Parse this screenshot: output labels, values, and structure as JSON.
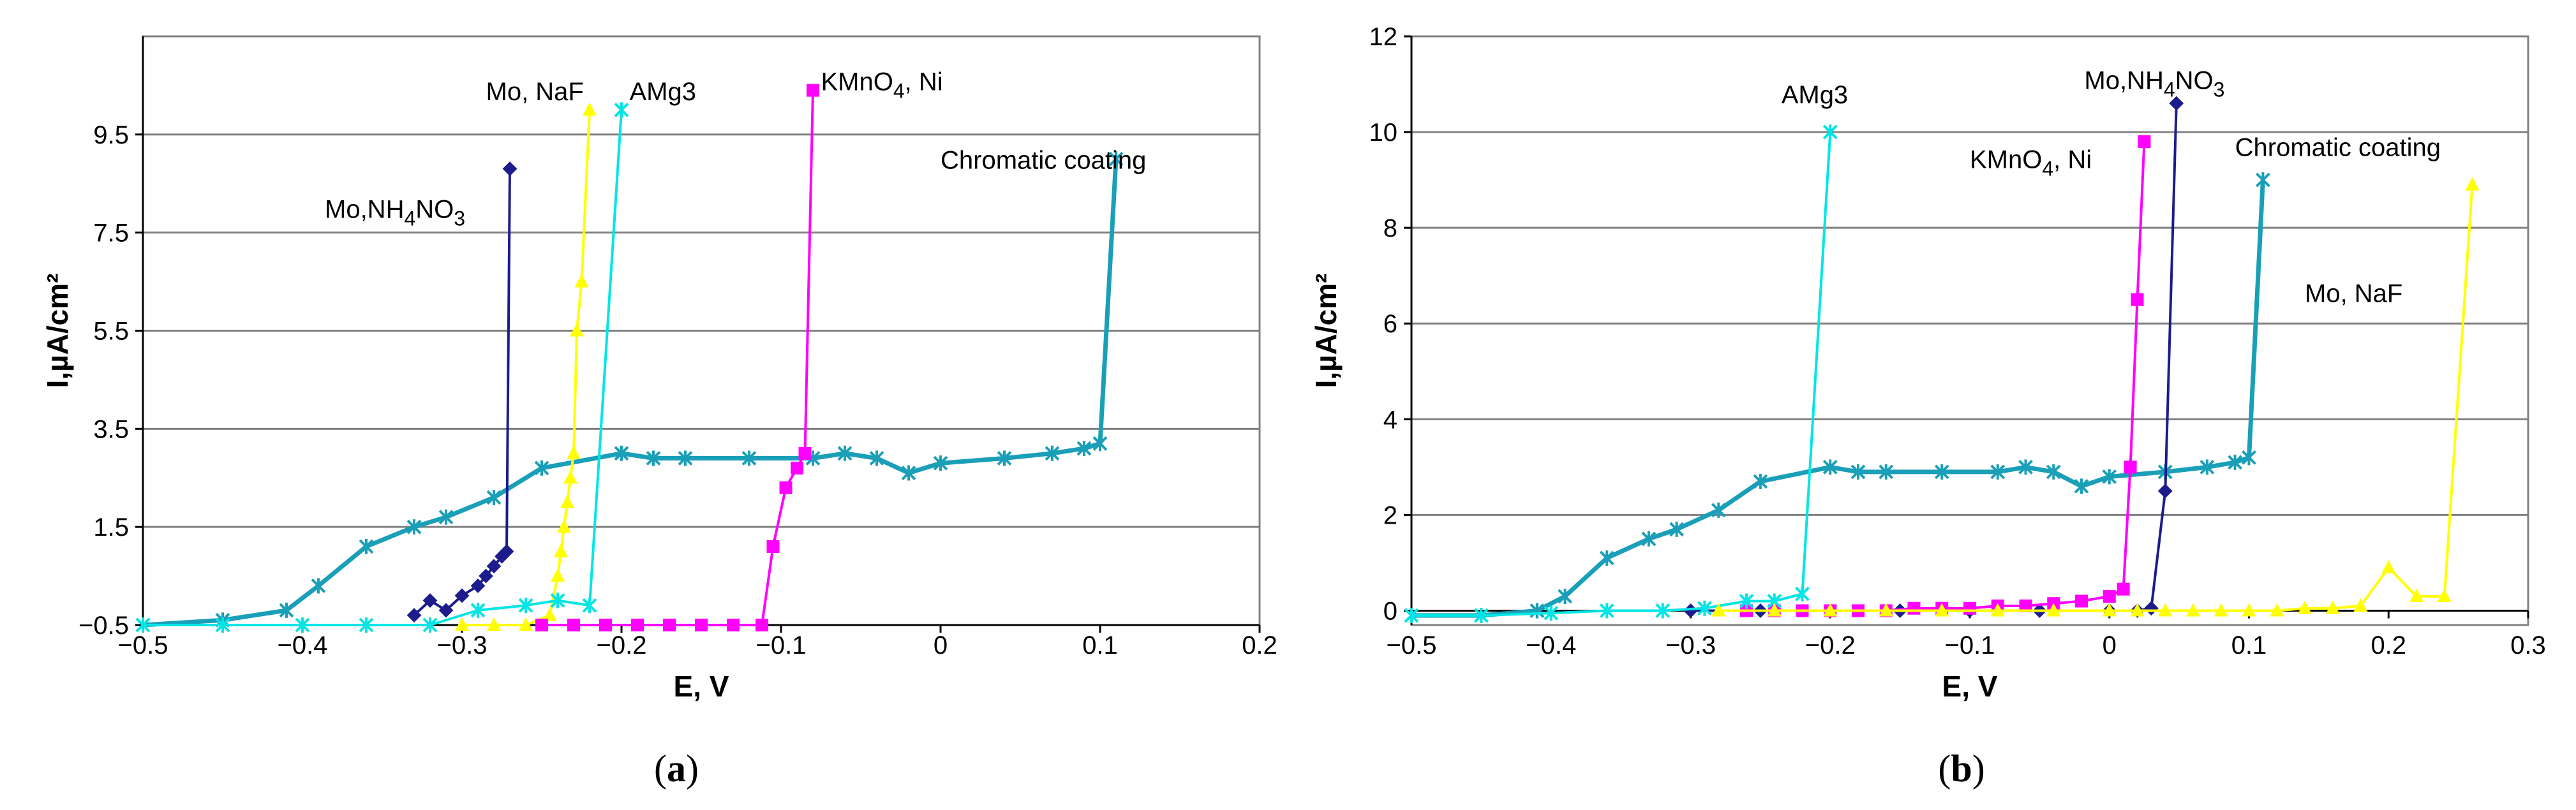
{
  "chart_data": [
    {
      "id": "a",
      "panel_label": "a",
      "type": "line",
      "xlabel": "E, V",
      "ylabel": "I,µA/cm²",
      "xlim": [
        -0.5,
        0.2
      ],
      "ylim": [
        -0.5,
        11.5
      ],
      "xticks": [
        -0.5,
        -0.4,
        -0.3,
        -0.2,
        -0.1,
        0,
        0.1,
        0.2
      ],
      "xtick_labels": [
        "−0.5",
        "−0.4",
        "−0.3",
        "−0.2",
        "−0.1",
        "0",
        "0.1",
        "0.2"
      ],
      "yticks": [
        -0.5,
        1.5,
        3.5,
        5.5,
        7.5,
        9.5
      ],
      "ytick_labels": [
        "−0.5",
        "1.5",
        "3.5",
        "5.5",
        "7.5",
        "9.5"
      ],
      "gridlines_y": [
        -0.5,
        1.5,
        3.5,
        5.5,
        7.5,
        9.5,
        11.5
      ],
      "series": [
        {
          "name": "Chromatic coating",
          "color": "#1a9fb8",
          "marker": "star",
          "label_parts": [
            {
              "t": "Chromatic coating",
              "sub": false
            }
          ],
          "label_at": [
            0.0,
            8.8
          ],
          "x": [
            -0.5,
            -0.45,
            -0.41,
            -0.39,
            -0.36,
            -0.33,
            -0.31,
            -0.28,
            -0.25,
            -0.2,
            -0.18,
            -0.16,
            -0.12,
            -0.08,
            -0.06,
            -0.04,
            -0.02,
            0.0,
            0.04,
            0.07,
            0.09,
            0.1,
            0.11
          ],
          "y": [
            -0.5,
            -0.4,
            -0.2,
            0.3,
            1.1,
            1.5,
            1.7,
            2.1,
            2.7,
            3.0,
            2.9,
            2.9,
            2.9,
            2.9,
            3.0,
            2.9,
            2.6,
            2.8,
            2.9,
            3.0,
            3.1,
            3.2,
            9.0
          ]
        },
        {
          "name": "Mo,NH₄NO₃",
          "color": "#1c1c8c",
          "marker": "diamond",
          "label_parts": [
            {
              "t": "Mo,NH",
              "sub": false
            },
            {
              "t": "4",
              "sub": true
            },
            {
              "t": "NO",
              "sub": false
            },
            {
              "t": "3",
              "sub": true
            }
          ],
          "label_at": [
            -0.386,
            7.8
          ],
          "x": [
            -0.33,
            -0.32,
            -0.31,
            -0.3,
            -0.29,
            -0.285,
            -0.28,
            -0.275,
            -0.272,
            -0.27
          ],
          "y": [
            -0.3,
            0.0,
            -0.2,
            0.1,
            0.3,
            0.5,
            0.7,
            0.9,
            1.0,
            8.8
          ]
        },
        {
          "name": "Mo, NaF",
          "color": "#ffff00",
          "marker": "triangle",
          "label_parts": [
            {
              "t": "Mo, NaF",
              "sub": false
            }
          ],
          "label_at": [
            -0.285,
            10.2
          ],
          "x": [
            -0.3,
            -0.28,
            -0.26,
            -0.245,
            -0.24,
            -0.238,
            -0.236,
            -0.234,
            -0.232,
            -0.23,
            -0.228,
            -0.225,
            -0.22
          ],
          "y": [
            -0.5,
            -0.5,
            -0.5,
            -0.3,
            0.5,
            1.0,
            1.5,
            2.0,
            2.5,
            3.0,
            5.5,
            6.5,
            10.0
          ]
        },
        {
          "name": "AMg3",
          "color": "#00e5e5",
          "marker": "star",
          "label_parts": [
            {
              "t": "AMg3",
              "sub": false
            }
          ],
          "label_at": [
            -0.195,
            10.2
          ],
          "x": [
            -0.5,
            -0.45,
            -0.4,
            -0.36,
            -0.32,
            -0.29,
            -0.26,
            -0.24,
            -0.22,
            -0.2
          ],
          "y": [
            -0.5,
            -0.5,
            -0.5,
            -0.5,
            -0.5,
            -0.2,
            -0.1,
            0.0,
            -0.1,
            10.0
          ]
        },
        {
          "name": "KMnO₄, Ni",
          "color": "#ff00ff",
          "marker": "square",
          "label_parts": [
            {
              "t": "KMnO",
              "sub": false
            },
            {
              "t": "4",
              "sub": true
            },
            {
              "t": ", Ni",
              "sub": false
            }
          ],
          "label_at": [
            -0.075,
            10.4
          ],
          "x": [
            -0.25,
            -0.23,
            -0.21,
            -0.19,
            -0.17,
            -0.15,
            -0.13,
            -0.112,
            -0.105,
            -0.097,
            -0.09,
            -0.085,
            -0.08
          ],
          "y": [
            -0.5,
            -0.5,
            -0.5,
            -0.5,
            -0.5,
            -0.5,
            -0.5,
            -0.5,
            1.1,
            2.3,
            2.7,
            3.0,
            10.4
          ]
        }
      ]
    },
    {
      "id": "b",
      "panel_label": "b",
      "type": "line",
      "xlabel": "E, V",
      "ylabel": "I,µA/cm²",
      "xlim": [
        -0.5,
        0.3
      ],
      "ylim": [
        -0.3,
        12
      ],
      "xticks": [
        -0.5,
        -0.4,
        -0.3,
        -0.2,
        -0.1,
        0,
        0.1,
        0.2,
        0.3
      ],
      "xtick_labels": [
        "−0.5",
        "−0.4",
        "−0.3",
        "−0.2",
        "−0.1",
        "0",
        "0.1",
        "0.2",
        "0.3"
      ],
      "yticks": [
        0,
        2,
        4,
        6,
        8,
        10,
        12
      ],
      "ytick_labels": [
        "0",
        "2",
        "4",
        "6",
        "8",
        "10",
        "12"
      ],
      "gridlines_y": [
        2,
        4,
        6,
        8,
        10,
        12
      ],
      "series": [
        {
          "name": "Chromatic coating",
          "color": "#1a9fb8",
          "marker": "star",
          "label_parts": [
            {
              "t": "Chromatic coating",
              "sub": false
            }
          ],
          "label_at": [
            0.09,
            9.5
          ],
          "x": [
            -0.5,
            -0.45,
            -0.41,
            -0.39,
            -0.36,
            -0.33,
            -0.31,
            -0.28,
            -0.25,
            -0.2,
            -0.18,
            -0.16,
            -0.12,
            -0.08,
            -0.06,
            -0.04,
            -0.02,
            0.0,
            0.04,
            0.07,
            0.09,
            0.1,
            0.11
          ],
          "y": [
            -0.1,
            -0.1,
            0.0,
            0.3,
            1.1,
            1.5,
            1.7,
            2.1,
            2.7,
            3.0,
            2.9,
            2.9,
            2.9,
            2.9,
            3.0,
            2.9,
            2.6,
            2.8,
            2.9,
            3.0,
            3.1,
            3.2,
            9.0
          ]
        },
        {
          "name": "Mo,NH₄NO₃",
          "color": "#1c1c8c",
          "marker": "diamond",
          "label_parts": [
            {
              "t": "Mo,NH",
              "sub": false
            },
            {
              "t": "4",
              "sub": true
            },
            {
              "t": "NO",
              "sub": false
            },
            {
              "t": "3",
              "sub": true
            }
          ],
          "label_at": [
            -0.018,
            10.9
          ],
          "x": [
            -0.3,
            -0.25,
            -0.2,
            -0.15,
            -0.1,
            -0.05,
            0.0,
            0.02,
            0.03,
            0.04,
            0.048
          ],
          "y": [
            0.0,
            0.0,
            0.0,
            0.0,
            0.0,
            0.0,
            0.0,
            0.0,
            0.05,
            2.5,
            10.6
          ]
        },
        {
          "name": "KMnO₄, Ni",
          "color": "#ff00ff",
          "marker": "square",
          "label_parts": [
            {
              "t": "KMnO",
              "sub": false
            },
            {
              "t": "4",
              "sub": true
            },
            {
              "t": ", Ni",
              "sub": false
            }
          ],
          "label_at": [
            -0.1,
            9.25
          ],
          "x": [
            -0.26,
            -0.24,
            -0.22,
            -0.2,
            -0.18,
            -0.16,
            -0.14,
            -0.12,
            -0.1,
            -0.08,
            -0.06,
            -0.04,
            -0.02,
            0.0,
            0.01,
            0.015,
            0.02,
            0.025
          ],
          "y": [
            0.0,
            0.0,
            0.0,
            0.0,
            0.0,
            0.0,
            0.05,
            0.05,
            0.05,
            0.1,
            0.1,
            0.15,
            0.2,
            0.3,
            0.45,
            3.0,
            6.5,
            9.8
          ]
        },
        {
          "name": "AMg3",
          "color": "#00e5e5",
          "marker": "star",
          "label_parts": [
            {
              "t": "AMg3",
              "sub": false
            }
          ],
          "label_at": [
            -0.235,
            10.6
          ],
          "x": [
            -0.5,
            -0.45,
            -0.4,
            -0.36,
            -0.32,
            -0.29,
            -0.26,
            -0.24,
            -0.22,
            -0.2
          ],
          "y": [
            -0.1,
            -0.1,
            -0.05,
            0.0,
            0.0,
            0.05,
            0.2,
            0.2,
            0.35,
            10.0
          ]
        },
        {
          "name": "Mo, NaF",
          "color": "#ffff00",
          "marker": "triangle",
          "label_parts": [
            {
              "t": "Mo, NaF",
              "sub": false
            }
          ],
          "label_at": [
            0.14,
            6.45
          ],
          "x": [
            -0.28,
            -0.24,
            -0.2,
            -0.16,
            -0.12,
            -0.08,
            -0.04,
            0.0,
            0.02,
            0.04,
            0.06,
            0.08,
            0.1,
            0.12,
            0.14,
            0.16,
            0.18,
            0.2,
            0.22,
            0.24,
            0.26
          ],
          "y": [
            0.0,
            0.0,
            0.0,
            0.0,
            0.0,
            0.0,
            0.0,
            0.0,
            0.0,
            0.0,
            0.0,
            0.0,
            0.0,
            0.0,
            0.05,
            0.05,
            0.1,
            0.9,
            0.3,
            0.3,
            8.9
          ]
        }
      ]
    }
  ]
}
